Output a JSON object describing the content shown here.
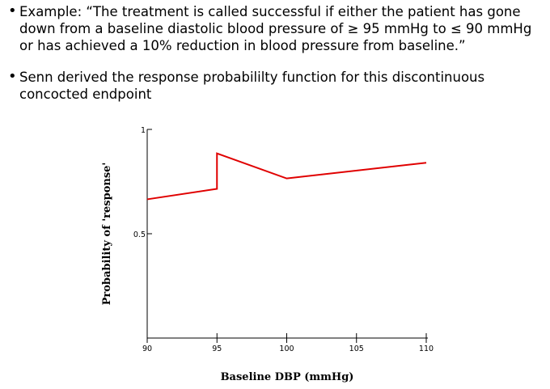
{
  "bullets": [
    "Example: “The treatment is called successful if either the patient has gone down from a baseline diastolic blood pressure of ≥ 95 mmHg to ≤ 90 mmHg or has achieved a 10% reduction in blood pressure from baseline.”",
    "Senn derived the response probabililty function for this discontinuous concocted endpoint"
  ],
  "bullet_symbol": "•",
  "chart_data": {
    "type": "line",
    "xlabel": "Baseline DBP (mmHg)",
    "ylabel": "Probability of 'response'",
    "xlim": [
      90,
      110
    ],
    "ylim": [
      0,
      1
    ],
    "x_ticks": [
      90,
      95,
      100,
      105,
      110
    ],
    "x_tick_labels": [
      "90",
      "95",
      "100",
      "105",
      "110"
    ],
    "y_ticks": [
      0.5,
      1
    ],
    "y_tick_labels": [
      "0.5",
      "1"
    ],
    "grid": false,
    "series": [
      {
        "color": "#e00000",
        "x": [
          90,
          95,
          95,
          100,
          110
        ],
        "y": [
          0.665,
          0.715,
          0.885,
          0.765,
          0.84
        ]
      }
    ]
  }
}
